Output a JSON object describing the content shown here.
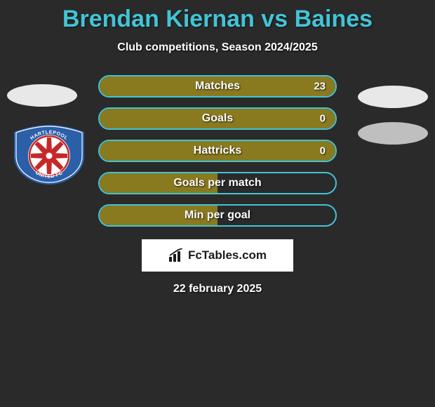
{
  "title": "Brendan Kiernan vs Baines",
  "subtitle": "Club competitions, Season 2024/2025",
  "date": "22 february 2025",
  "brand": "FcTables.com",
  "colors": {
    "accent": "#42c4d6",
    "fill": "#8a7a1f",
    "bg": "#2a2a2a"
  },
  "stats": [
    {
      "label": "Matches",
      "value": "23",
      "fill": "full",
      "show_value": true
    },
    {
      "label": "Goals",
      "value": "0",
      "fill": "full",
      "show_value": true
    },
    {
      "label": "Hattricks",
      "value": "0",
      "fill": "full",
      "show_value": true
    },
    {
      "label": "Goals per match",
      "value": "",
      "fill": "half",
      "show_value": false
    },
    {
      "label": "Min per goal",
      "value": "",
      "fill": "half",
      "show_value": false
    }
  ],
  "crest": {
    "top_text": "HARTLEPOOL",
    "bottom_text": "UNITED FC",
    "spoke_count": 8,
    "colors": {
      "blue": "#2b5fa8",
      "red": "#c62828",
      "white": "#ffffff"
    }
  }
}
